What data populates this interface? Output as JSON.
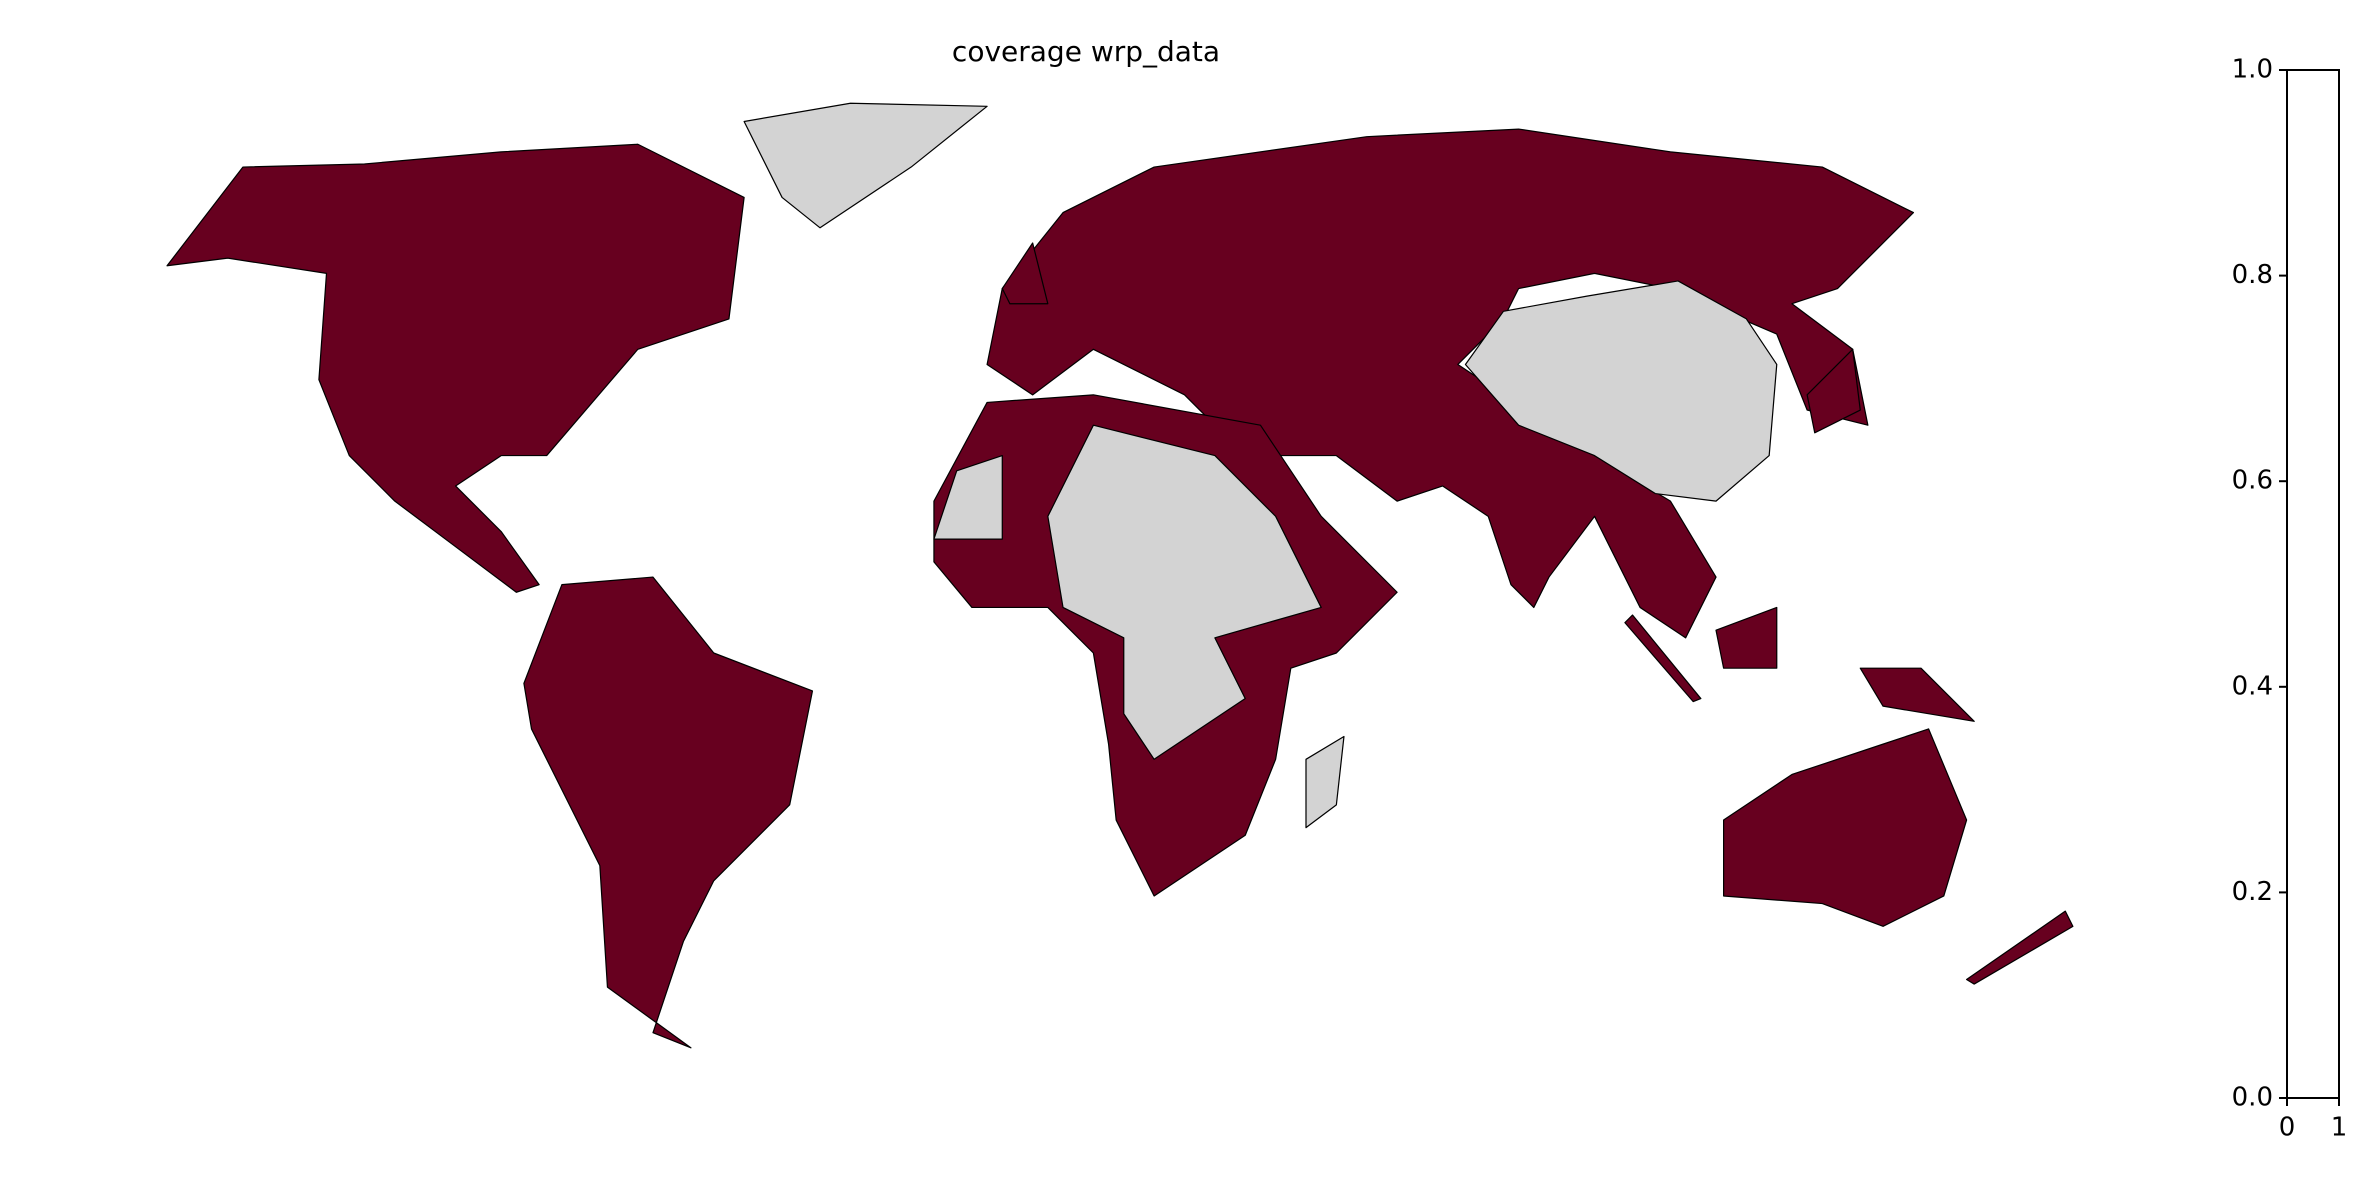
{
  "chart_data": {
    "type": "choropleth",
    "title": "coverage wrp_data",
    "covered_color": "#67001f",
    "uncovered_color": "#d3d3d3",
    "colorbar": {
      "ylim": [
        0,
        1
      ],
      "yticks": [
        {
          "value": 0,
          "label": "0.0"
        },
        {
          "value": 0.2,
          "label": "0.2"
        },
        {
          "value": 0.4,
          "label": "0.4"
        },
        {
          "value": 0.6,
          "label": "0.6"
        },
        {
          "value": 0.8,
          "label": "0.8"
        },
        {
          "value": 1,
          "label": "1.0"
        }
      ],
      "xlim": [
        0,
        1
      ],
      "xticks": [
        0,
        1
      ]
    }
  }
}
